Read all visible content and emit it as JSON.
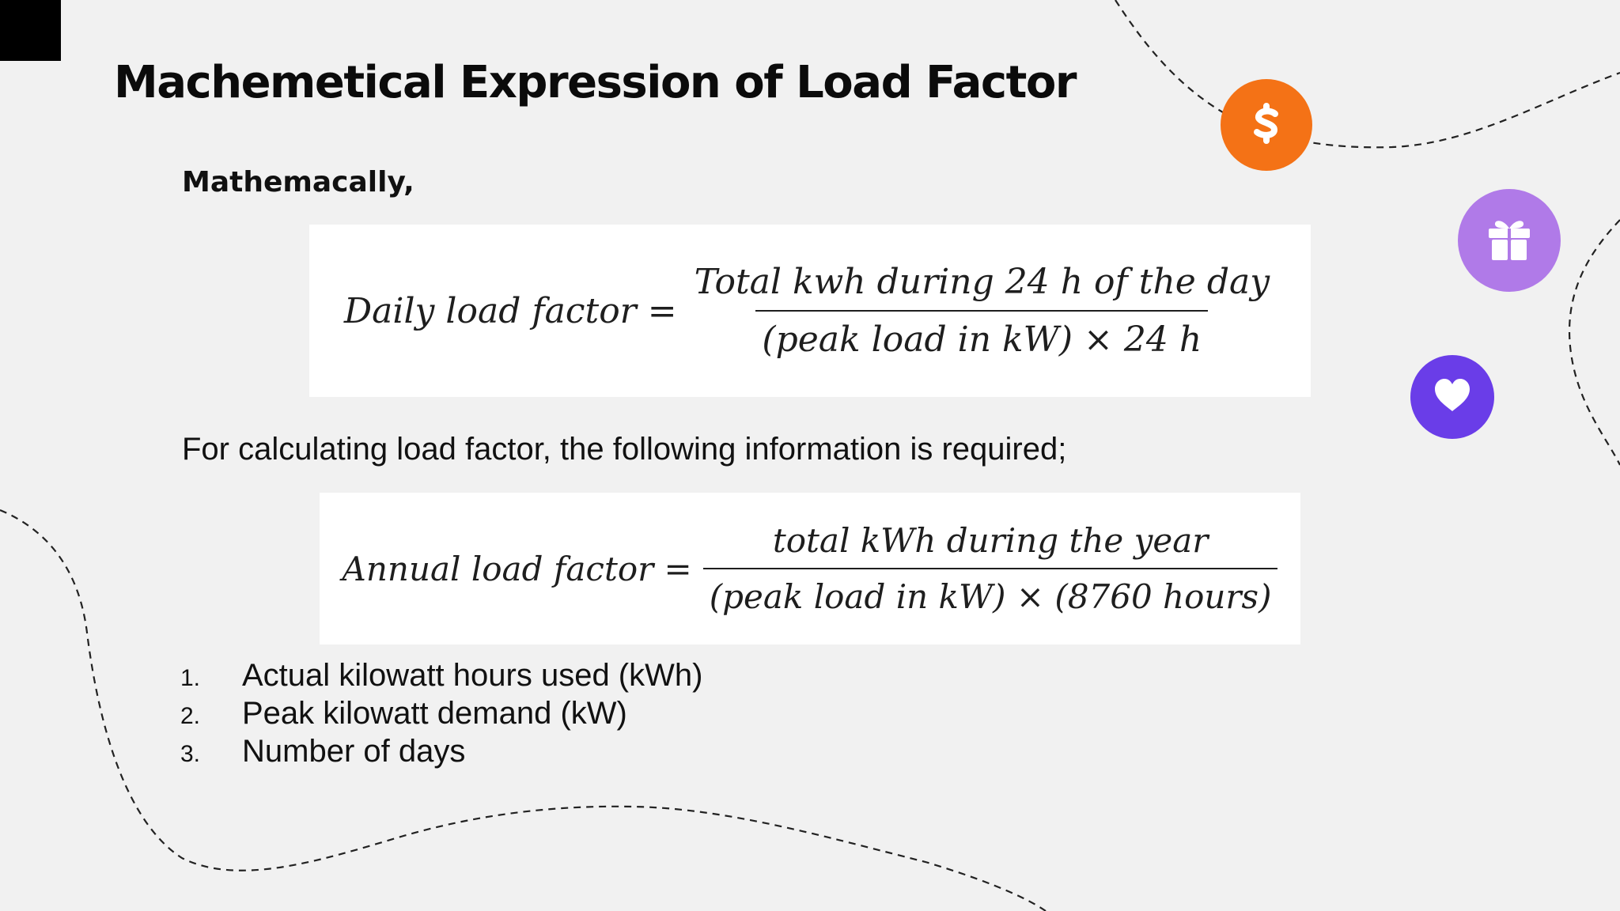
{
  "slide": {
    "title": "Machemetical Expression of Load Factor",
    "subheading": "Mathemacally,",
    "daily_formula": {
      "lhs": "Daily load factor =",
      "numerator": "Total kwh during 24 h of the day",
      "denominator": "(peak load in kW) × 24 h"
    },
    "info_text": "For calculating load factor, the following information is required;",
    "annual_formula": {
      "lhs": "Annual load factor =",
      "numerator": "total kWh during the year",
      "denominator": "(peak load in kW) × (8760 hours)"
    },
    "requirements": [
      {
        "number": "1.",
        "text": "Actual kilowatt hours used (kWh)"
      },
      {
        "number": "2.",
        "text": "Peak kilowatt demand (kW)"
      },
      {
        "number": "3.",
        "text": "Number of days"
      }
    ]
  },
  "decorations": {
    "icons": [
      {
        "name": "dollar-icon",
        "color": "#f47216"
      },
      {
        "name": "gift-icon",
        "color": "#b07ae8"
      },
      {
        "name": "heart-icon",
        "color": "#6a3de8"
      }
    ],
    "corner_block_color": "#000000",
    "background_color": "#f1f1f1"
  }
}
